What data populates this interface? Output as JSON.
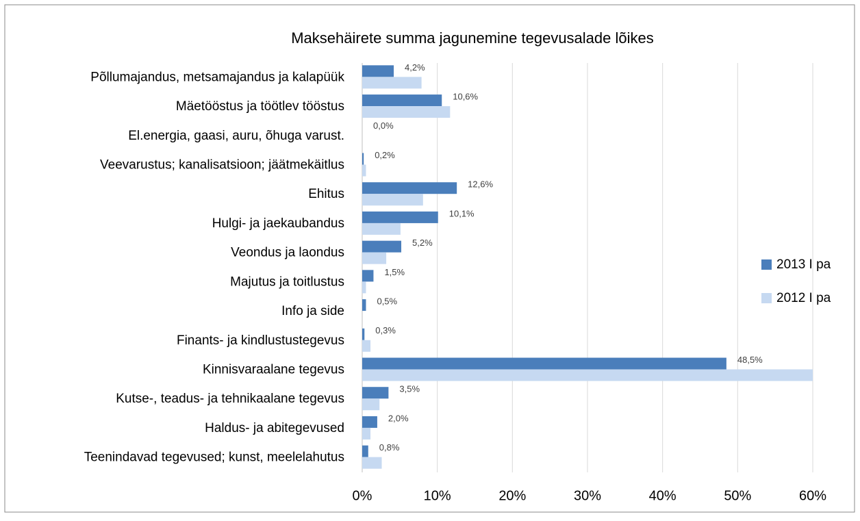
{
  "chart_data": {
    "type": "barh",
    "title": "Maksehäirete summa jagunemine tegevusalade lõikes",
    "categories": [
      "Põllumajandus, metsamajandus ja kalapüük",
      "Mäetööstus ja töötlev tööstus",
      "El.energia, gaasi, auru, õhuga varust.",
      "Veevarustus; kanalisatsioon; jäätmekäitlus",
      "Ehitus",
      "Hulgi- ja jaekaubandus",
      "Veondus ja laondus",
      "Majutus ja toitlustus",
      "Info ja side",
      "Finants- ja kindlustustegevus",
      "Kinnisvaraalane tegevus",
      "Kutse-, teadus- ja tehnikaalane tegevus",
      "Haldus- ja abitegevused",
      "Teenindavad tegevused; kunst, meelelahutus"
    ],
    "series": [
      {
        "name": "2013 I pa",
        "color": "#4a7ebb",
        "values": [
          4.2,
          10.6,
          0.0,
          0.2,
          12.6,
          10.1,
          5.2,
          1.5,
          0.5,
          0.3,
          48.5,
          3.5,
          2.0,
          0.8
        ],
        "value_labels": [
          "4,2%",
          "10,6%",
          "0,0%",
          "0,2%",
          "12,6%",
          "10,1%",
          "5,2%",
          "1,5%",
          "0,5%",
          "0,3%",
          "48,5%",
          "3,5%",
          "2,0%",
          "0,8%"
        ]
      },
      {
        "name": "2012 I pa",
        "color": "#c6d9f1",
        "values": [
          7.9,
          11.7,
          0,
          0.5,
          8.1,
          5.1,
          3.2,
          0.5,
          0,
          1.1,
          60,
          2.3,
          1.1,
          2.6
        ]
      }
    ],
    "xlim": [
      0,
      60
    ],
    "xticks": [
      {
        "value": 0,
        "label": "0%"
      },
      {
        "value": 10,
        "label": "10%"
      },
      {
        "value": 20,
        "label": "20%"
      },
      {
        "value": 30,
        "label": "30%"
      },
      {
        "value": 40,
        "label": "40%"
      },
      {
        "value": 50,
        "label": "50%"
      },
      {
        "value": 60,
        "label": "60%"
      }
    ],
    "grid": true,
    "legend": "right"
  }
}
